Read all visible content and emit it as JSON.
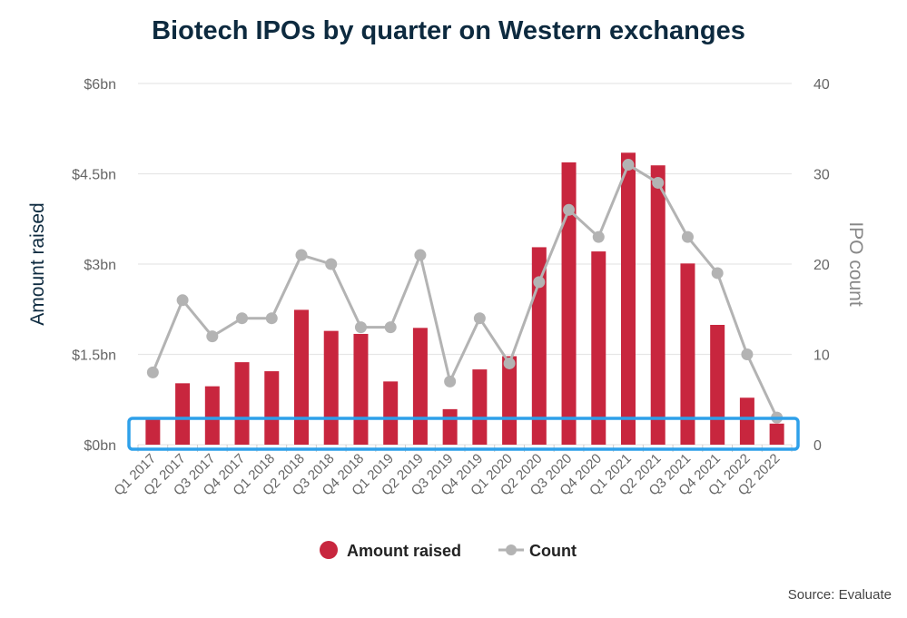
{
  "chart_data": {
    "type": "bar+line",
    "title": "Biotech IPOs by quarter on Western exchanges",
    "source": "Source: Evaluate",
    "categories": [
      "Q1 2017",
      "Q2 2017",
      "Q3 2017",
      "Q4 2017",
      "Q1 2018",
      "Q2 2018",
      "Q3 2018",
      "Q4 2018",
      "Q1 2019",
      "Q2 2019",
      "Q3 2019",
      "Q4 2019",
      "Q1 2020",
      "Q2 2020",
      "Q3 2020",
      "Q4 2020",
      "Q1 2021",
      "Q2 2021",
      "Q3 2021",
      "Q4 2021",
      "Q1 2022",
      "Q2 2022"
    ],
    "y_left": {
      "label": "Amount raised",
      "ticks": [
        "$0bn",
        "$1.5bn",
        "$3bn",
        "$4.5bn",
        "$6bn"
      ],
      "tick_values": [
        0,
        1.5,
        3,
        4.5,
        6
      ],
      "ylim": [
        0,
        6
      ],
      "color": "#0d2a3f"
    },
    "y_right": {
      "label": "IPO count",
      "ticks": [
        "0",
        "10",
        "20",
        "30",
        "40"
      ],
      "tick_values": [
        0,
        10,
        20,
        30,
        40
      ],
      "ylim": [
        0,
        40
      ],
      "color": "#888888"
    },
    "series": [
      {
        "name": "Amount raised",
        "type": "bar",
        "axis": "left",
        "color": "#c8263e",
        "values": [
          0.45,
          1.02,
          0.97,
          1.37,
          1.22,
          2.24,
          1.89,
          1.84,
          1.05,
          1.94,
          0.59,
          1.25,
          1.47,
          3.28,
          4.69,
          3.21,
          4.85,
          4.64,
          3.01,
          1.99,
          0.78,
          0.35
        ]
      },
      {
        "name": "Count",
        "type": "line",
        "axis": "right",
        "color": "#b3b3b3",
        "values": [
          8,
          16,
          12,
          14,
          14,
          21,
          20,
          13,
          13,
          21,
          7,
          14,
          9,
          18,
          26,
          23,
          31,
          29,
          23,
          19,
          10,
          3
        ]
      }
    ],
    "legend": "bottom-center",
    "grid": true,
    "highlight": {
      "description": "blue outlined box spanning all quarters at the low end of the axes",
      "color": "#2ea0ea"
    }
  }
}
